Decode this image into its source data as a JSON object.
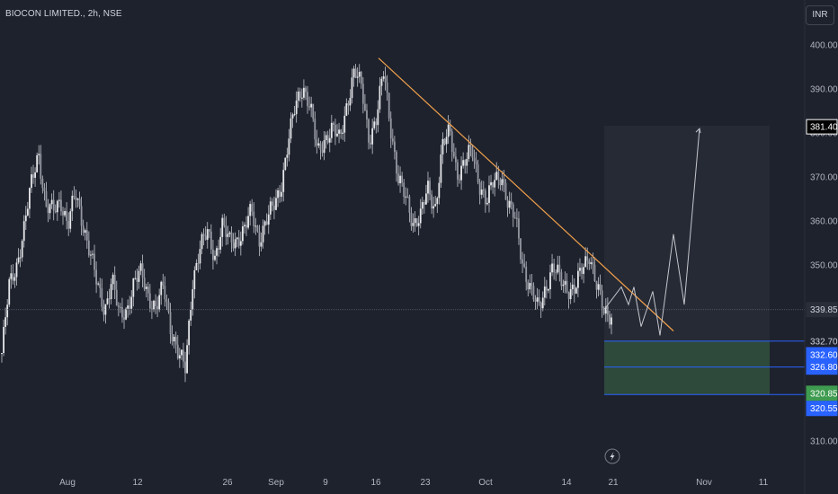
{
  "header": {
    "title": "BIOCON LIMITED., 2h, NSE",
    "currency": "INR"
  },
  "colors": {
    "background": "#1e222d",
    "candle": "#c4c6cc",
    "trendline": "#f0a04b",
    "zone_border": "#2962ff",
    "zone_fill": "#2e4a3a",
    "blue_label": "#2962ff",
    "green_label": "#3e9b4f",
    "projection": "#c4c6cc"
  },
  "chart_data": {
    "type": "candlestick",
    "title": "BIOCON LIMITED., 2h, NSE",
    "y_ticks": [
      310,
      320,
      330,
      340,
      350,
      360,
      370,
      380,
      390,
      400
    ],
    "y_tick_labels": [
      "310.00",
      "320.00",
      "330.00",
      "340.00",
      "350.00",
      "360.00",
      "370.00",
      "380.00",
      "390.00",
      "400.00"
    ],
    "x_tick_labels": [
      "Aug",
      "12",
      "26",
      "Sep",
      "9",
      "16",
      "23",
      "Oct",
      "14",
      "21",
      "Nov",
      "11"
    ],
    "price_path": [
      330,
      345,
      350,
      358,
      368,
      376,
      363,
      362,
      365,
      359,
      366,
      360,
      353,
      345,
      340,
      347,
      338,
      340,
      346,
      348,
      343,
      340,
      345,
      336,
      330,
      326,
      347,
      354,
      357,
      352,
      359,
      355,
      356,
      358,
      362,
      356,
      360,
      363,
      368,
      378,
      386,
      391,
      386,
      375,
      379,
      381,
      378,
      387,
      394,
      390,
      379,
      383,
      394,
      381,
      369,
      365,
      360,
      361,
      367,
      363,
      377,
      380,
      371,
      373,
      376,
      369,
      364,
      369,
      371,
      363,
      360,
      350,
      344,
      340,
      345,
      349,
      347,
      345,
      344,
      349,
      353,
      345,
      339,
      339
    ],
    "projection_path": [
      339.85,
      345,
      341,
      345,
      336,
      344,
      334,
      357,
      341,
      381
    ],
    "trendline": {
      "from": 397,
      "to": 335
    },
    "zone": {
      "upper": 332.7,
      "lower": 320.55,
      "inner_line": 326.8
    },
    "current_price": 339.85,
    "labels": {
      "price_381": "381.40",
      "price_current": "339.85",
      "zone_top": "332.70",
      "blue_332": "332.60",
      "blue_326": "326.80",
      "green_320": "320.85",
      "blue_320": "320.55"
    }
  }
}
